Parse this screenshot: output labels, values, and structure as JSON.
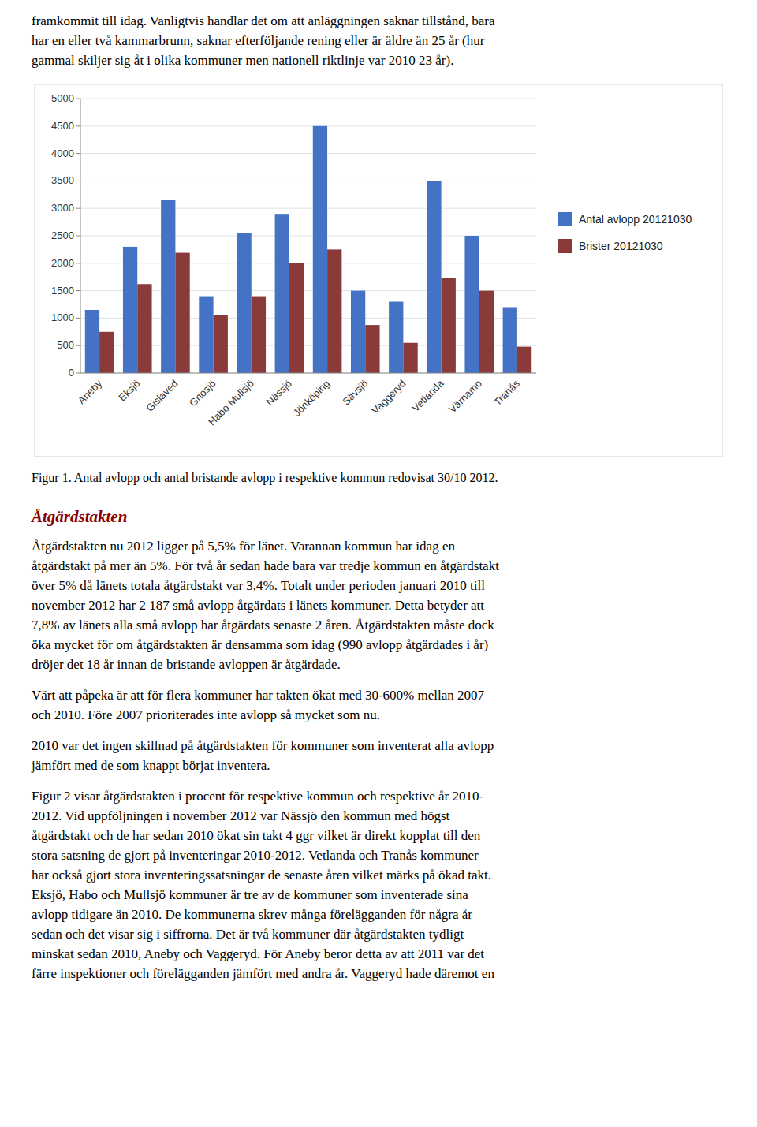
{
  "intro_lines": [
    "framkommit till idag. Vanligtvis handlar det om att anläggningen saknar tillstånd, bara",
    "har en eller två kammarbrunn, saknar efterföljande rening eller är äldre än 25 år (hur",
    "gammal skiljer sig åt i olika kommuner men nationell riktlinje var 2010 23 år)."
  ],
  "chart_data": {
    "type": "bar",
    "categories": [
      "Aneby",
      "Eksjö",
      "Gislaved",
      "Gnosjö",
      "Habo Mullsjö",
      "Nässjö",
      "Jönköping",
      "Sävsjö",
      "Vaggeryd",
      "Vetlanda",
      "Värnamo",
      "Tranås"
    ],
    "series": [
      {
        "name": "Antal avlopp 20121030",
        "color": "#4472C4",
        "values": [
          1150,
          2300,
          3150,
          1400,
          2550,
          2900,
          4500,
          1500,
          1300,
          3500,
          2500,
          1200
        ]
      },
      {
        "name": "Brister 20121030",
        "color": "#8B3A3A",
        "values": [
          750,
          1620,
          2190,
          1050,
          1400,
          2000,
          2250,
          875,
          550,
          1730,
          1500,
          480
        ]
      }
    ],
    "ylim": [
      0,
      5000
    ],
    "yticks": [
      0,
      500,
      1000,
      1500,
      2000,
      2500,
      3000,
      3500,
      4000,
      4500,
      5000
    ],
    "grid": true,
    "legend": "right"
  },
  "caption": "Figur 1. Antal avlopp och antal bristande avlopp i respektive kommun redovisat 30/10 2012.",
  "heading": "Åtgärdstakten",
  "paragraphs": [
    [
      "Åtgärdstakten nu 2012 ligger på 5,5% för länet. Varannan kommun har idag en",
      "åtgärdstakt på mer än 5%. För två år sedan hade bara var tredje kommun en åtgärdstakt",
      "över 5% då länets totala åtgärdstakt var 3,4%. Totalt under perioden januari 2010 till",
      "november 2012 har 2 187 små avlopp åtgärdats i länets kommuner. Detta betyder att",
      "7,8% av länets alla små avlopp har åtgärdats senaste 2 åren. Åtgärdstakten måste dock",
      "öka mycket för om åtgärdstakten är densamma som idag (990 avlopp åtgärdades i år)",
      "dröjer det 18 år innan de bristande avloppen är åtgärdade."
    ],
    [
      "Värt att påpeka är att för flera kommuner har takten ökat med 30-600% mellan 2007",
      "och 2010. Före 2007 prioriterades inte avlopp så mycket som nu."
    ],
    [
      "2010 var det ingen skillnad på åtgärdstakten för kommuner som inventerat alla avlopp",
      "jämfört med de som knappt börjat inventera."
    ],
    [
      "Figur 2 visar åtgärdstakten i procent för respektive kommun och respektive år 2010-",
      "2012. Vid uppföljningen i november 2012 var Nässjö den kommun med högst",
      "åtgärdstakt och de har sedan 2010 ökat sin takt 4 ggr vilket är direkt kopplat till den",
      "stora satsning de gjort på inventeringar 2010-2012. Vetlanda och Tranås kommuner",
      "har också gjort stora inventeringssatsningar de senaste åren vilket märks på ökad takt.",
      "Eksjö, Habo och Mullsjö kommuner är tre av de kommuner som inventerade sina",
      "avlopp tidigare än 2010. De kommunerna skrev många förelägganden för några år",
      "sedan och det visar sig i siffrorna. Det är två kommuner där åtgärdstakten tydligt",
      "minskat sedan 2010, Aneby och Vaggeryd. För Aneby beror detta av att 2011 var det",
      "färre inspektioner och förelägganden jämfört med andra år. Vaggeryd hade däremot en"
    ]
  ]
}
